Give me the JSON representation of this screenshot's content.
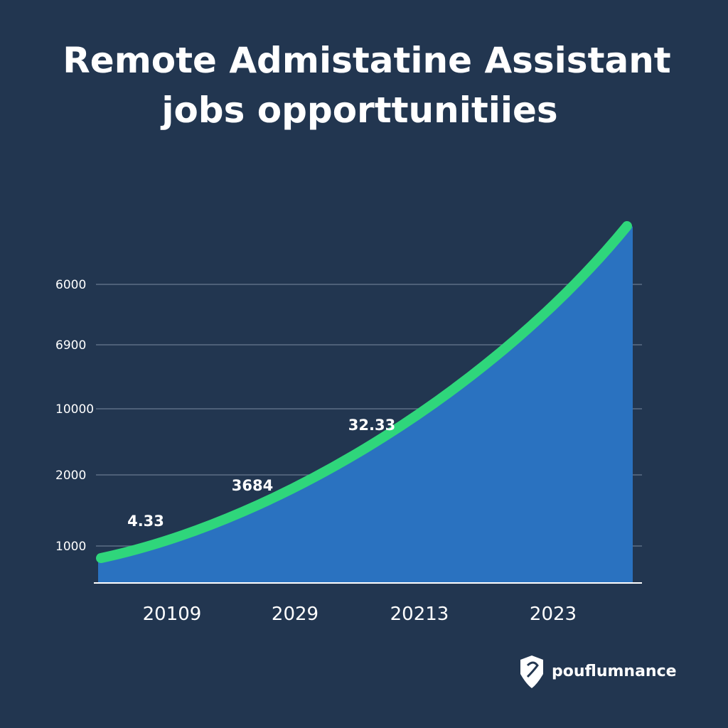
{
  "chart_data": {
    "type": "area",
    "title_lines": [
      "Remote Admistatine Assistant",
      "jobs opporttunitiies"
    ],
    "y_axis_labels": [
      "6000",
      "6900",
      "10000",
      "2000",
      "1000"
    ],
    "categories": [
      "20109",
      "2029",
      "20213",
      "2023"
    ],
    "annotations": [
      "4.33",
      "3684",
      "32.33"
    ],
    "brand": "pouflumnance",
    "fill_color": "#2a72c0",
    "line_color": "#2fd67b",
    "grid": true
  }
}
